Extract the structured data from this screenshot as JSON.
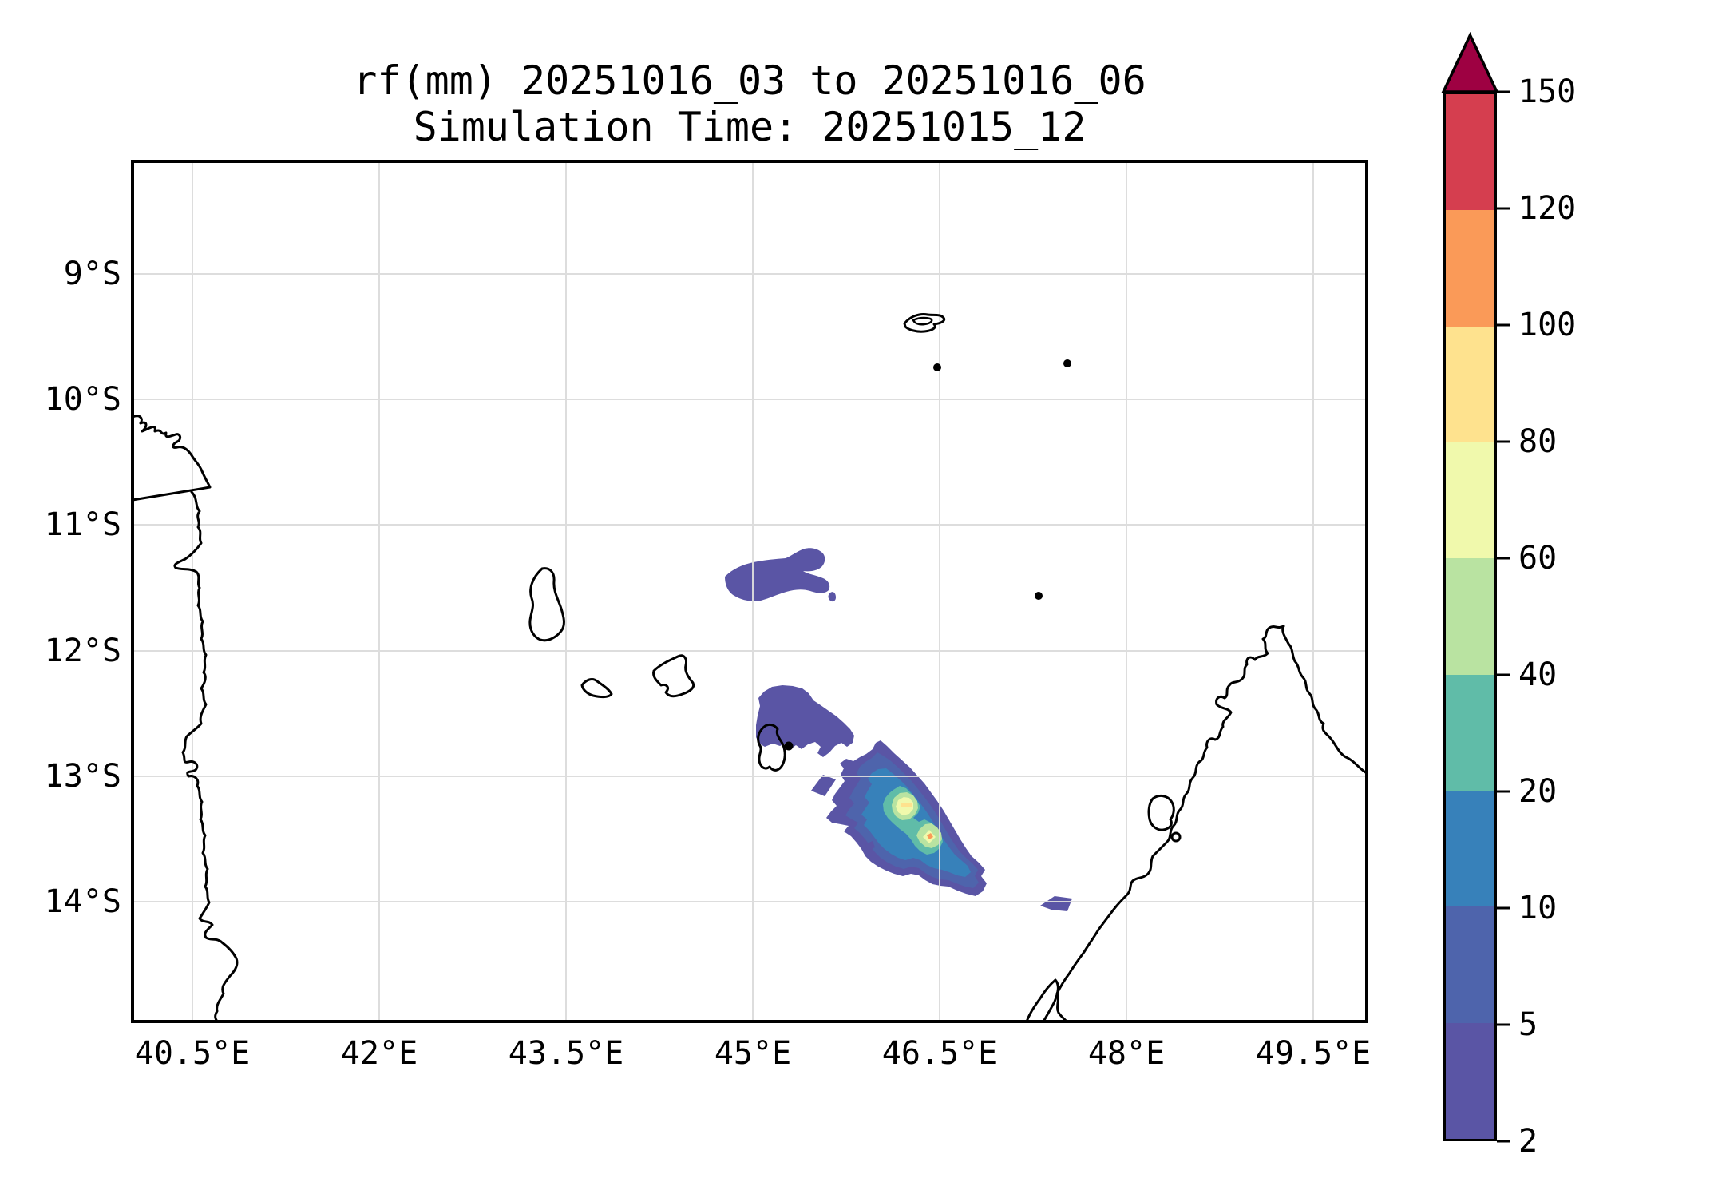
{
  "title": {
    "line1": "rf(mm) 20251016_03 to 20251016_06",
    "line2": "Simulation Time: 20251015_12"
  },
  "axes": {
    "x_labels": [
      "40.5°E",
      "42°E",
      "43.5°E",
      "45°E",
      "46.5°E",
      "48°E",
      "49.5°E"
    ],
    "y_labels": [
      "9°S",
      "10°S",
      "11°S",
      "12°S",
      "13°S",
      "14°S"
    ]
  },
  "colorbar": {
    "tick_labels": [
      "150",
      "120",
      "100",
      "80",
      "60",
      "40",
      "20",
      "10",
      "5",
      "2"
    ],
    "segment_colors_top_to_bottom": [
      "#d53e4f",
      "#fa9a58",
      "#fee28e",
      "#f0f9ac",
      "#b9e3a1",
      "#60bca8",
      "#3781ba",
      "#4e64ac",
      "#5a55a5"
    ],
    "arrow_color": "#9e0142",
    "levels_mm": [
      2,
      5,
      10,
      20,
      40,
      60,
      80,
      100,
      120,
      150
    ]
  },
  "palette": {
    "lvl_2_5": "#5a55a5",
    "lvl_5_10": "#4e64ac",
    "lvl_10_20": "#3781ba",
    "lvl_20_40": "#60bca8",
    "lvl_40_60": "#b9e3a1",
    "lvl_60_80": "#f0f9ac",
    "lvl_80_100": "#fee28e",
    "lvl_100_120": "#fa9a58",
    "lvl_120_150": "#d53e4f",
    "over_150": "#9e0142",
    "grid_color": "#dcdcdc",
    "coast_color": "#000000"
  },
  "chart_data": {
    "type": "heatmap",
    "subtype": "filled-contour-map",
    "title": "rf(mm) 20251016_03 to 20251016_06",
    "subtitle": "Simulation Time: 20251015_12",
    "variable": "rainfall (mm)",
    "x_tick_labels_deg_e": [
      40.5,
      42,
      43.5,
      45,
      46.5,
      48,
      49.5
    ],
    "y_tick_labels_deg_s": [
      9,
      10,
      11,
      12,
      13,
      14
    ],
    "map_extent": {
      "lon_e": [
        40.0,
        49.95
      ],
      "lat_s": [
        8.1,
        14.95
      ]
    },
    "contour_levels_mm": [
      2,
      5,
      10,
      20,
      40,
      60,
      80,
      100,
      120,
      150
    ],
    "colormap": "Spectral_r (discrete, arrow above 150)",
    "grid": true,
    "legend_position": "right colorbar",
    "rain_features": [
      {
        "name": "main-rain-band",
        "center_lon_e": 46.3,
        "center_lat_s": 13.3,
        "orientation": "NW-SE",
        "max_level_mm": "100-120"
      },
      {
        "name": "upper-core",
        "lon_e": 46.2,
        "lat_s": 13.25,
        "max_level_mm": "80-100"
      },
      {
        "name": "lower-core",
        "lon_e": 46.4,
        "lat_s": 13.5,
        "max_level_mm": "100-120"
      },
      {
        "name": "band-north-of-comoros",
        "lon_e": 45.2,
        "lat_s": 11.4,
        "max_level_mm": "2-5"
      },
      {
        "name": "arm-over-mayotte",
        "lon_e": 45.4,
        "lat_s": 12.5,
        "max_level_mm": "2-5"
      },
      {
        "name": "patch-near-madagascar-coast",
        "lon_e": 47.4,
        "lat_s": 14.0,
        "max_level_mm": "2-5"
      }
    ],
    "geography": [
      "African (Mozambique/Tanzania) coastline along west edge",
      "Comoros islands: Grande Comore, Moheli, Anjouan, Mayotte",
      "Aldabra and small islets in north",
      "Northern tip of Madagascar with Nosy Be in southeast"
    ]
  }
}
